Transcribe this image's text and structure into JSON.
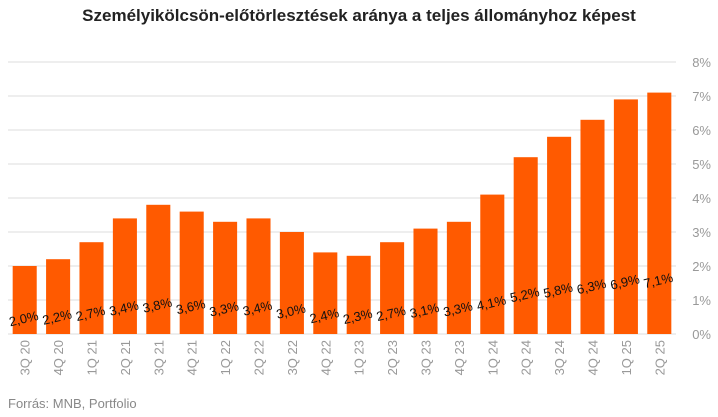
{
  "colors": {
    "bar": "#FF5A00",
    "grid": "#dddddd",
    "axis_text": "#999999",
    "label_text": "#111111",
    "title": "#222222"
  },
  "source": "Forrás: MNB, Portfolio",
  "chart_data": {
    "type": "bar",
    "title": "Személyikölcsön-előtörlesztések aránya a teljes állományhoz képest",
    "xlabel": "",
    "ylabel": "",
    "ylim": [
      0,
      8
    ],
    "y_ticks": [
      "0%",
      "1%",
      "2%",
      "3%",
      "4%",
      "5%",
      "6%",
      "7%",
      "8%"
    ],
    "y_axis_position": "right",
    "grid": true,
    "legend": "none",
    "categories": [
      "3Q 20",
      "4Q 20",
      "1Q 21",
      "2Q 21",
      "3Q 21",
      "4Q 21",
      "1Q 22",
      "2Q 22",
      "3Q 22",
      "4Q 22",
      "1Q 23",
      "2Q 23",
      "3Q 23",
      "4Q 23",
      "1Q 24",
      "2Q 24",
      "3Q 24",
      "4Q 24",
      "1Q 25",
      "2Q 25"
    ],
    "values": [
      2.0,
      2.2,
      2.7,
      3.4,
      3.8,
      3.6,
      3.3,
      3.4,
      3.0,
      2.4,
      2.3,
      2.7,
      3.1,
      3.3,
      4.1,
      5.2,
      5.8,
      6.3,
      6.9,
      7.1
    ],
    "data_labels": [
      "2,0%",
      "2,2%",
      "2,7%",
      "3,4%",
      "3,8%",
      "3,6%",
      "3,3%",
      "3,4%",
      "3,0%",
      "2,4%",
      "2,3%",
      "2,7%",
      "3,1%",
      "3,3%",
      "4,1%",
      "5,2%",
      "5,8%",
      "6,3%",
      "6,9%",
      "7,1%"
    ]
  }
}
